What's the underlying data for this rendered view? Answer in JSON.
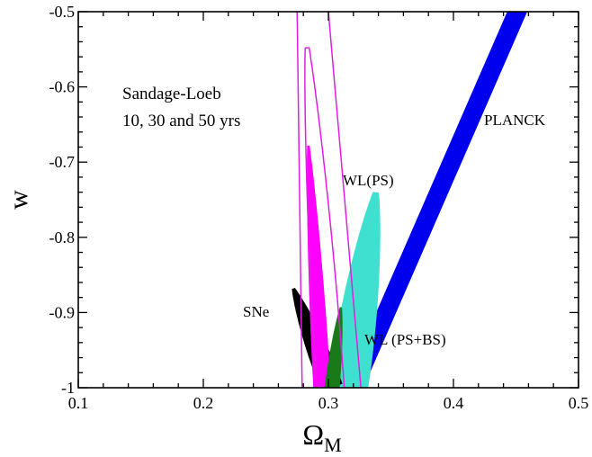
{
  "chart_data": {
    "type": "contour",
    "xlabel": "Ω",
    "xlabel_sub": "M",
    "ylabel": "w",
    "xlim": [
      0.1,
      0.5
    ],
    "ylim": [
      -1.0,
      -0.5
    ],
    "x_ticks": [
      0.1,
      0.2,
      0.3,
      0.4,
      0.5
    ],
    "x_tick_labels": [
      "0.1",
      "0.2",
      "0.3",
      "0.4",
      "0.5"
    ],
    "y_ticks": [
      -1.0,
      -0.9,
      -0.8,
      -0.7,
      -0.6,
      -0.5
    ],
    "y_tick_labels": [
      "-1",
      "-0.9",
      "-0.8",
      "-0.7",
      "-0.6",
      "-0.5"
    ],
    "grid": false,
    "annotations": {
      "sandage_line1": "Sandage-Loeb",
      "sandage_line2": "10, 30 and 50 yrs",
      "planck": "PLANCK",
      "wl_ps": "WL(PS)",
      "wl_psbs": "WL (PS+BS)",
      "sne": "SNe"
    },
    "regions": [
      {
        "label": "PLANCK",
        "color": "#0000ee",
        "polygon": [
          [
            0.312,
            -1.0
          ],
          [
            0.443,
            -0.5
          ],
          [
            0.459,
            -0.5
          ],
          [
            0.328,
            -1.0
          ]
        ]
      },
      {
        "label": "WL(PS)",
        "color": "#40e0d0",
        "ellipse": {
          "cx": 0.326,
          "cy": -0.87,
          "tip": [
            0.338,
            -0.74
          ],
          "halfwidth": 0.012,
          "tail_to": -1.0
        }
      },
      {
        "label": "SNe",
        "color": "#000000",
        "ellipse": {
          "tip": [
            0.272,
            -0.868
          ],
          "base": [
            0.303,
            -1.0
          ],
          "halfwidth": 0.009
        }
      },
      {
        "label": "Sandage-Loeb 50 yrs",
        "color": "#ff00ff",
        "filled": true,
        "ellipse": {
          "tip": [
            0.284,
            -0.678
          ],
          "base": [
            0.296,
            -1.0
          ],
          "halfwidth": 0.007
        }
      },
      {
        "label": "WL (PS+BS)",
        "color": "#1a7a1a",
        "ellipse": {
          "tip": [
            0.31,
            -0.893
          ],
          "base": [
            0.301,
            -1.0
          ],
          "halfwidth": 0.006
        }
      },
      {
        "label": "Sandage-Loeb 30 yrs",
        "color": "#e020e0",
        "filled": false,
        "ellipse": {
          "tip": [
            0.283,
            -0.548
          ],
          "base": [
            0.303,
            -1.0
          ],
          "halfwidth": 0.011
        }
      },
      {
        "label": "Sandage-Loeb 10 yrs",
        "color": "#e020e0",
        "filled": false,
        "band": [
          [
            0.279,
            -1.0
          ],
          [
            0.275,
            -0.5
          ],
          [
            0.3,
            -0.5
          ],
          [
            0.326,
            -1.0
          ]
        ]
      }
    ]
  }
}
